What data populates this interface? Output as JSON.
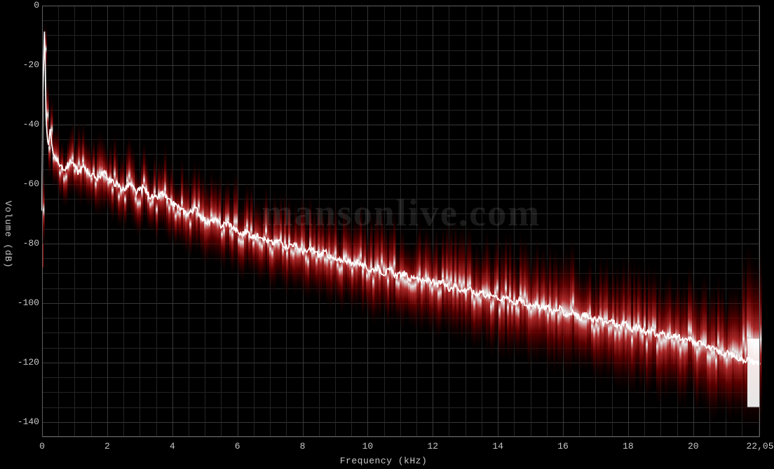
{
  "chart": {
    "type": "line-spectrum",
    "background_color": "#000000",
    "plot_border_color": "#606060",
    "grid_color_minor": "#242424",
    "grid_color_major": "#383838",
    "text_color": "#c8c8c8",
    "font_family": "Courier New",
    "label_fontsize": 13,
    "watermark_text": "mansonlive.com",
    "watermark_color": "rgba(180,180,180,0.15)",
    "watermark_fontsize": 54,
    "x_axis": {
      "title": "Frequency (kHz)",
      "min": 0,
      "max": 22.05,
      "tick_values": [
        0,
        2,
        4,
        6,
        8,
        10,
        12,
        14,
        16,
        18,
        20,
        22.05
      ],
      "tick_labels": [
        "0",
        "2",
        "4",
        "6",
        "8",
        "10",
        "12",
        "14",
        "16",
        "18",
        "20",
        "22,05"
      ],
      "minor_tick_step": 0.5
    },
    "y_axis": {
      "title": "Volume (dB)",
      "min": -145,
      "max": 0,
      "tick_values": [
        0,
        -20,
        -40,
        -60,
        -80,
        -100,
        -120,
        -140
      ],
      "tick_labels": [
        "0",
        "-20",
        "-40",
        "-60",
        "-80",
        "-100",
        "-120",
        "-140"
      ],
      "minor_tick_step": 5
    },
    "spectrum_line": {
      "color": "#ffffff",
      "width": 1.8,
      "data": [
        [
          0.0,
          -70
        ],
        [
          0.02,
          -32
        ],
        [
          0.08,
          -5
        ],
        [
          0.12,
          -38
        ],
        [
          0.18,
          -48
        ],
        [
          0.25,
          -42
        ],
        [
          0.35,
          -50
        ],
        [
          0.5,
          -53
        ],
        [
          0.7,
          -55
        ],
        [
          0.9,
          -52
        ],
        [
          1.1,
          -56
        ],
        [
          1.3,
          -54
        ],
        [
          1.5,
          -57
        ],
        [
          1.7,
          -58
        ],
        [
          1.9,
          -56
        ],
        [
          2.1,
          -59
        ],
        [
          2.3,
          -60
        ],
        [
          2.5,
          -62
        ],
        [
          2.7,
          -60
        ],
        [
          2.9,
          -63
        ],
        [
          3.1,
          -61
        ],
        [
          3.3,
          -64
        ],
        [
          3.5,
          -65
        ],
        [
          3.7,
          -63
        ],
        [
          3.9,
          -66
        ],
        [
          4.1,
          -67
        ],
        [
          4.3,
          -69
        ],
        [
          4.5,
          -70
        ],
        [
          4.7,
          -68
        ],
        [
          4.9,
          -71
        ],
        [
          5.1,
          -73
        ],
        [
          5.3,
          -72
        ],
        [
          5.5,
          -74
        ],
        [
          5.7,
          -73
        ],
        [
          5.9,
          -75
        ],
        [
          6.1,
          -77
        ],
        [
          6.3,
          -76
        ],
        [
          6.5,
          -78
        ],
        [
          6.7,
          -77
        ],
        [
          6.9,
          -79
        ],
        [
          7.1,
          -80
        ],
        [
          7.3,
          -79
        ],
        [
          7.5,
          -81
        ],
        [
          7.7,
          -80
        ],
        [
          7.9,
          -82
        ],
        [
          8.1,
          -83
        ],
        [
          8.3,
          -82
        ],
        [
          8.5,
          -84
        ],
        [
          8.7,
          -83
        ],
        [
          8.9,
          -85
        ],
        [
          9.1,
          -86
        ],
        [
          9.3,
          -85
        ],
        [
          9.5,
          -87
        ],
        [
          9.7,
          -86
        ],
        [
          9.9,
          -88
        ],
        [
          10.1,
          -89
        ],
        [
          10.3,
          -88
        ],
        [
          10.5,
          -90
        ],
        [
          10.7,
          -89
        ],
        [
          10.9,
          -91
        ],
        [
          11.1,
          -90
        ],
        [
          11.3,
          -92
        ],
        [
          11.5,
          -91
        ],
        [
          11.7,
          -93
        ],
        [
          11.9,
          -92
        ],
        [
          12.1,
          -94
        ],
        [
          12.3,
          -93
        ],
        [
          12.5,
          -95
        ],
        [
          12.7,
          -94
        ],
        [
          12.9,
          -96
        ],
        [
          13.1,
          -95
        ],
        [
          13.3,
          -97
        ],
        [
          13.5,
          -96
        ],
        [
          13.7,
          -98
        ],
        [
          13.9,
          -97
        ],
        [
          14.1,
          -99
        ],
        [
          14.3,
          -98
        ],
        [
          14.5,
          -100
        ],
        [
          14.7,
          -99
        ],
        [
          14.9,
          -101
        ],
        [
          15.1,
          -100
        ],
        [
          15.3,
          -102
        ],
        [
          15.5,
          -101
        ],
        [
          15.7,
          -103
        ],
        [
          15.9,
          -102
        ],
        [
          16.1,
          -104
        ],
        [
          16.3,
          -103
        ],
        [
          16.5,
          -105
        ],
        [
          16.7,
          -104
        ],
        [
          16.9,
          -106
        ],
        [
          17.1,
          -105
        ],
        [
          17.3,
          -107
        ],
        [
          17.5,
          -106
        ],
        [
          17.7,
          -108
        ],
        [
          17.9,
          -107
        ],
        [
          18.1,
          -109
        ],
        [
          18.3,
          -108
        ],
        [
          18.5,
          -110
        ],
        [
          18.7,
          -109
        ],
        [
          18.9,
          -111
        ],
        [
          19.1,
          -110
        ],
        [
          19.3,
          -112
        ],
        [
          19.5,
          -111
        ],
        [
          19.7,
          -113
        ],
        [
          19.9,
          -112
        ],
        [
          20.1,
          -114
        ],
        [
          20.3,
          -113
        ],
        [
          20.5,
          -115
        ],
        [
          20.7,
          -116
        ],
        [
          20.9,
          -117
        ],
        [
          21.1,
          -117
        ],
        [
          21.3,
          -118
        ],
        [
          21.5,
          -119
        ],
        [
          21.7,
          -119
        ],
        [
          21.9,
          -120
        ],
        [
          22.05,
          -120
        ]
      ]
    },
    "heatmap_glow": {
      "colors_dark_to_bright": [
        "#000000",
        "#2a0000",
        "#550000",
        "#7a0000",
        "#a01010",
        "#c83030",
        "#e86060",
        "#ffa0a0",
        "#ffffff"
      ],
      "vertical_spread_db": 30,
      "flame_jitter_db": 6
    }
  }
}
